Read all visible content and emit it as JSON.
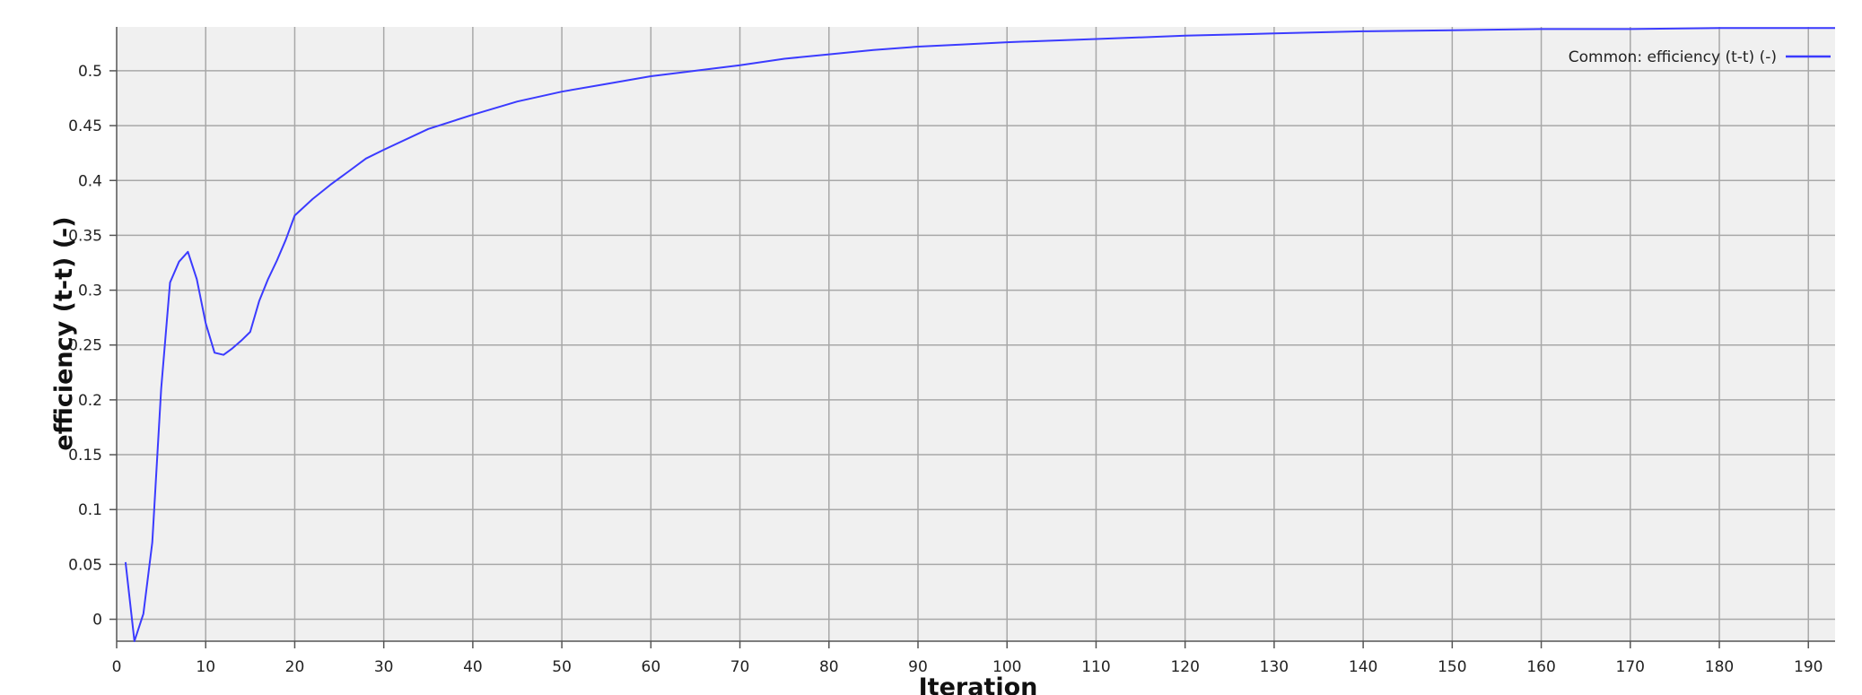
{
  "chart_data": {
    "type": "line",
    "title": "",
    "xlabel": "Iteration",
    "ylabel": "efficiency (t-t) (-)",
    "xlim": [
      0,
      193
    ],
    "ylim": [
      -0.02,
      0.54
    ],
    "grid": true,
    "legend_position": "top-right",
    "x_ticks": [
      0,
      10,
      20,
      30,
      40,
      50,
      60,
      70,
      80,
      90,
      100,
      110,
      120,
      130,
      140,
      150,
      160,
      170,
      180,
      190
    ],
    "y_ticks": [
      0,
      0.05,
      0.1,
      0.15,
      0.2,
      0.25,
      0.3,
      0.35,
      0.4,
      0.45,
      0.5
    ],
    "x_tick_labels": [
      "0",
      "10",
      "20",
      "30",
      "40",
      "50",
      "60",
      "70",
      "80",
      "90",
      "100",
      "110",
      "120",
      "130",
      "140",
      "150",
      "160",
      "170",
      "180",
      "190"
    ],
    "y_tick_labels": [
      "0",
      "0.05",
      "0.1",
      "0.15",
      "0.2",
      "0.25",
      "0.3",
      "0.35",
      "0.4",
      "0.45",
      "0.5"
    ],
    "colors": {
      "background": "#f0f0f0",
      "grid": "#a8a8a8",
      "axis": "#555555",
      "series": "#3b3bff"
    },
    "series": [
      {
        "name": "Common: efficiency (t-t) (-)",
        "color": "#3b3bff",
        "x": [
          1,
          2,
          3,
          4,
          5,
          6,
          7,
          8,
          9,
          10,
          11,
          12,
          13,
          14,
          15,
          16,
          17,
          18,
          19,
          20,
          22,
          24,
          26,
          28,
          30,
          35,
          40,
          45,
          50,
          55,
          60,
          65,
          70,
          75,
          80,
          85,
          90,
          95,
          100,
          110,
          120,
          130,
          140,
          150,
          160,
          170,
          180,
          190,
          193
        ],
        "values": [
          0.052,
          -0.02,
          0.005,
          0.07,
          0.21,
          0.307,
          0.326,
          0.335,
          0.31,
          0.27,
          0.243,
          0.241,
          0.247,
          0.254,
          0.262,
          0.29,
          0.31,
          0.327,
          0.346,
          0.368,
          0.383,
          0.396,
          0.408,
          0.42,
          0.428,
          0.447,
          0.46,
          0.472,
          0.481,
          0.488,
          0.495,
          0.5,
          0.505,
          0.511,
          0.515,
          0.519,
          0.522,
          0.524,
          0.526,
          0.529,
          0.532,
          0.534,
          0.536,
          0.537,
          0.538,
          0.538,
          0.539,
          0.539,
          0.539
        ]
      }
    ]
  }
}
